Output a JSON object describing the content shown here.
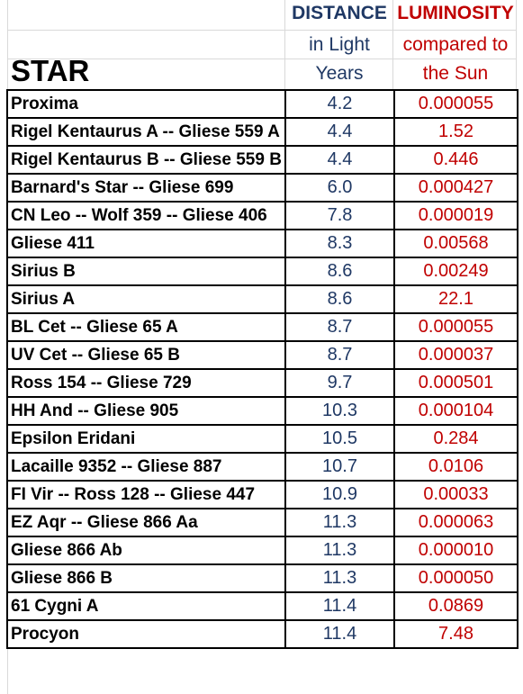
{
  "header": {
    "star_label": "STAR",
    "distance_title": "DISTANCE",
    "distance_sub": "in Light\nYears",
    "luminosity_title": "LUMINOSITY",
    "luminosity_sub": "compared to\nthe Sun"
  },
  "colors": {
    "distance": "#1f3864",
    "luminosity": "#c00000",
    "name": "#000000"
  },
  "rows": [
    {
      "name": "Proxima",
      "distance": "4.2",
      "luminosity": "0.000055"
    },
    {
      "name": "Rigel Kentaurus A -- Gliese 559 A",
      "distance": "4.4",
      "luminosity": "1.52"
    },
    {
      "name": "Rigel Kentaurus B -- Gliese 559 B",
      "distance": "4.4",
      "luminosity": "0.446"
    },
    {
      "name": "Barnard's Star -- Gliese 699",
      "distance": "6.0",
      "luminosity": "0.000427"
    },
    {
      "name": "CN Leo -- Wolf 359 -- Gliese 406",
      "distance": "7.8",
      "luminosity": "0.000019"
    },
    {
      "name": "Gliese 411",
      "distance": "8.3",
      "luminosity": "0.00568"
    },
    {
      "name": "Sirius B",
      "distance": "8.6",
      "luminosity": "0.00249"
    },
    {
      "name": "Sirius A",
      "distance": "8.6",
      "luminosity": "22.1"
    },
    {
      "name": "BL Cet -- Gliese 65 A",
      "distance": "8.7",
      "luminosity": "0.000055"
    },
    {
      "name": "UV Cet -- Gliese 65 B",
      "distance": "8.7",
      "luminosity": "0.000037"
    },
    {
      "name": "Ross 154 -- Gliese 729",
      "distance": "9.7",
      "luminosity": "0.000501"
    },
    {
      "name": "HH And -- Gliese 905",
      "distance": "10.3",
      "luminosity": "0.000104"
    },
    {
      "name": "Epsilon  Eridani",
      "distance": "10.5",
      "luminosity": "0.284"
    },
    {
      "name": "Lacaille 9352 -- Gliese 887",
      "distance": "10.7",
      "luminosity": "0.0106"
    },
    {
      "name": "FI Vir -- Ross 128 -- Gliese 447",
      "distance": "10.9",
      "luminosity": "0.00033"
    },
    {
      "name": "EZ Aqr -- Gliese 866 Aa",
      "distance": "11.3",
      "luminosity": "0.000063"
    },
    {
      "name": "Gliese 866 Ab",
      "distance": "11.3",
      "luminosity": "0.000010"
    },
    {
      "name": "Gliese 866 B",
      "distance": "11.3",
      "luminosity": "0.000050"
    },
    {
      "name": "61 Cygni A",
      "distance": "11.4",
      "luminosity": "0.0869"
    },
    {
      "name": "Procyon",
      "distance": "11.4",
      "luminosity": "7.48"
    }
  ]
}
